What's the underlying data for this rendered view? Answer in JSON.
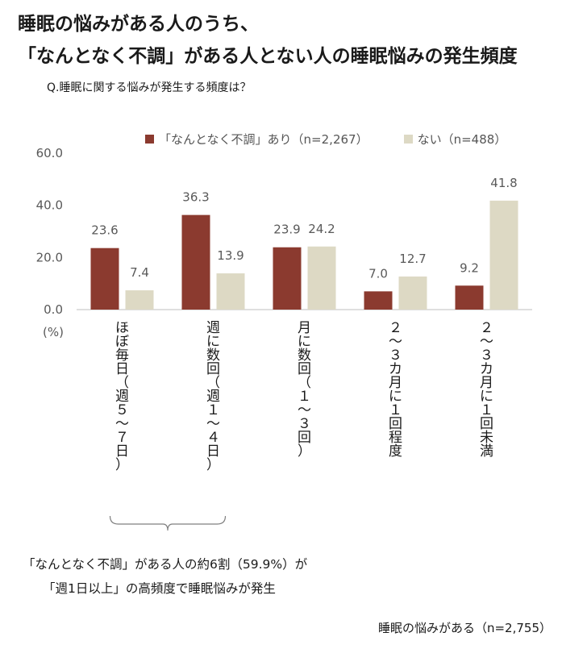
{
  "title_line1": "睡眠の悩みがある人のうち、",
  "title_line2": "「なんとなく不調」がある人とない人の睡眠悩みの発生頻度",
  "question": "Q.睡眠に関する悩みが発生する頻度は？",
  "note_line1": "「なんとなく不調」がある人の約6割（59.9%）が",
  "note_line2": "「週1日以上」の高頻度で睡眠悩みが発生",
  "base_note": "睡眠の悩みがある（n=2,755）",
  "colors": {
    "series_a": "#8b3a2f",
    "series_b": "#ddd9c4",
    "axis": "#bfbfbf",
    "bracket": "#7f7f7f"
  },
  "chart_data": {
    "type": "bar",
    "title": "",
    "xlabel": "",
    "ylabel": "(%)",
    "ylim": [
      0,
      60
    ],
    "yticks": [
      "0.0",
      "20.0",
      "40.0",
      "60.0"
    ],
    "categories": [
      "ほぼ毎日（週５～７日）",
      "週に数回（週１～４日）",
      "月に数回（１～３回）",
      "２～３カ月に１回程度",
      "２～３カ月に１回未満"
    ],
    "category_lines": [
      [
        "ほ",
        "ぼ",
        "毎",
        "日",
        "（",
        "週",
        "５",
        "～",
        "７",
        "日",
        "）"
      ],
      [
        "週",
        "に",
        "数",
        "回",
        "（",
        "週",
        "１",
        "～",
        "４",
        "日",
        "）"
      ],
      [
        "月",
        "に",
        "数",
        "回",
        "（",
        "１",
        "～",
        "３",
        "回",
        "）"
      ],
      [
        "２",
        "～",
        "３",
        "カ",
        "月",
        "に",
        "１",
        "回",
        "程",
        "度"
      ],
      [
        "２",
        "～",
        "３",
        "カ",
        "月",
        "に",
        "１",
        "回",
        "未",
        "満"
      ]
    ],
    "series": [
      {
        "name": "「なんとなく不調」あり（n=2,267）",
        "values": [
          23.6,
          36.3,
          23.9,
          7.0,
          9.2
        ],
        "labels": [
          "23.6",
          "36.3",
          "23.9",
          "7.0",
          "9.2"
        ]
      },
      {
        "name": "ない（n=488）",
        "values": [
          7.4,
          13.9,
          24.2,
          12.7,
          41.8
        ],
        "labels": [
          "7.4",
          "13.9",
          "24.2",
          "12.7",
          "41.8"
        ]
      }
    ]
  }
}
